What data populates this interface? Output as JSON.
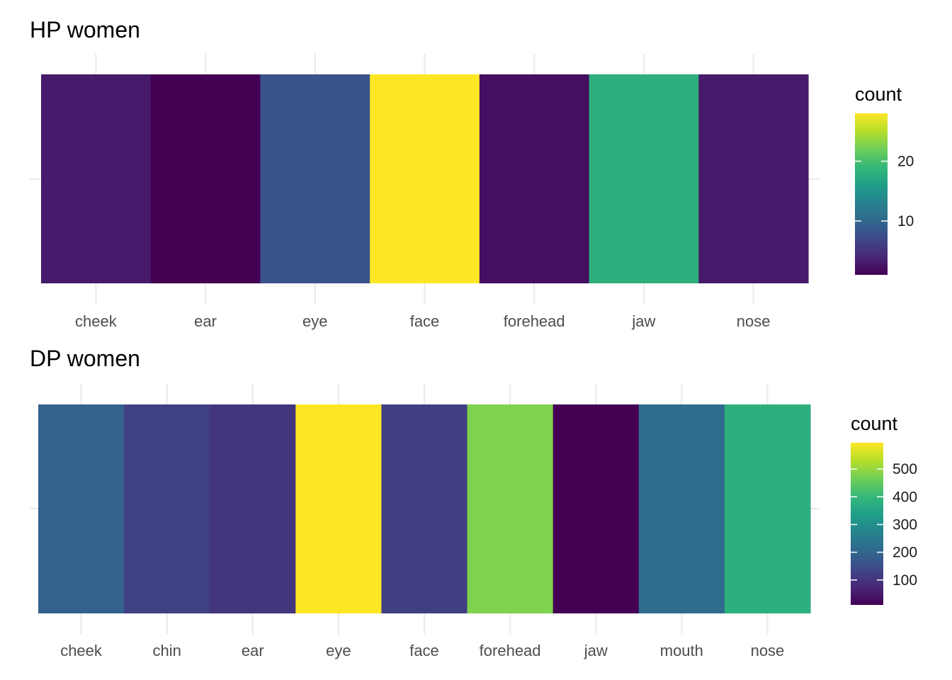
{
  "chart_data": [
    {
      "type": "heatmap",
      "title": "HP women",
      "categories": [
        "cheek",
        "ear",
        "eye",
        "face",
        "forehead",
        "jaw",
        "nose"
      ],
      "values": [
        3,
        1,
        8,
        28,
        2,
        18,
        3
      ],
      "legend": {
        "title": "count",
        "position": "right",
        "range": [
          1,
          28
        ],
        "breaks": [
          10,
          20
        ]
      },
      "xlabel": "",
      "ylabel": "",
      "grid": true,
      "colormap": "viridis"
    },
    {
      "type": "heatmap",
      "title": "DP women",
      "categories": [
        "cheek",
        "chin",
        "ear",
        "eye",
        "face",
        "forehead",
        "jaw",
        "mouth",
        "nose"
      ],
      "values": [
        195,
        125,
        100,
        595,
        120,
        480,
        10,
        215,
        380
      ],
      "legend": {
        "title": "count",
        "position": "right",
        "range": [
          10,
          595
        ],
        "breaks": [
          100,
          200,
          300,
          400,
          500
        ]
      },
      "xlabel": "",
      "ylabel": "",
      "grid": true,
      "colormap": "viridis"
    }
  ]
}
